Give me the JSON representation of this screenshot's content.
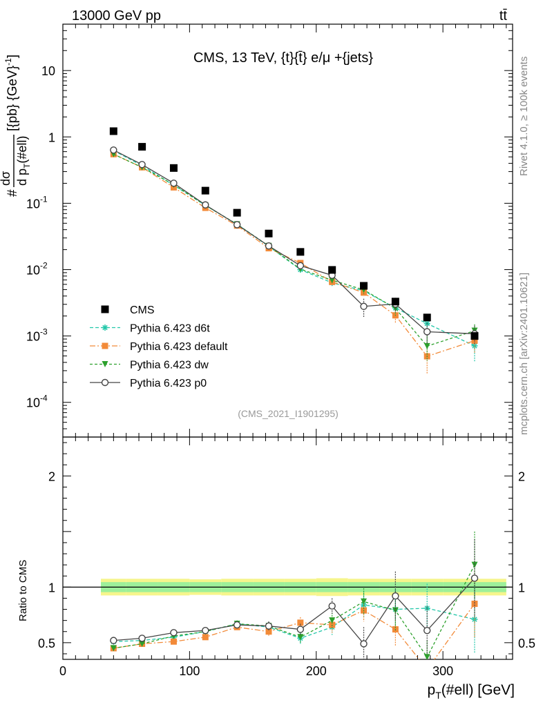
{
  "header": {
    "energy_label": "13000 GeV pp",
    "process_label": "tt̄"
  },
  "side_labels": {
    "rivet": "Rivet 4.1.0, ≥ 100k events",
    "mcplots": "mcplots.cern.ch [arXiv:2401.10621]"
  },
  "chart_data": {
    "type": "line",
    "title": "CMS, 13 TeV, {t}{t̄} e/μ +{jets}",
    "analysis_tag": "(CMS_2021_I1901295)",
    "xlabel": "p_T(#ell) [GeV]",
    "ylabel_main": "#dσ/d p_T(#ell) [{pb} {GeV}^-1]",
    "ylabel_ratio": "Ratio to CMS",
    "xlim": [
      0,
      355
    ],
    "ylim_main": [
      3e-05,
      50
    ],
    "ylim_ratio": [
      0.35,
      2.35
    ],
    "yscale_main": "log",
    "x_ticks": [
      "0",
      "100",
      "200",
      "300"
    ],
    "y_ticks_main": [
      "10^-4",
      "10^-3",
      "10^-2",
      "10^-1",
      "1",
      "10"
    ],
    "y_ticks_ratio": [
      "0.5",
      "1",
      "2"
    ],
    "x": [
      40,
      62.5,
      87.5,
      112.5,
      137.5,
      162.5,
      187.5,
      212.5,
      237.5,
      262.5,
      287.5,
      325
    ],
    "x_bin_edges": [
      30,
      50,
      75,
      100,
      125,
      150,
      175,
      200,
      225,
      250,
      275,
      300,
      350
    ],
    "data": {
      "name": "CMS",
      "values": [
        1.22,
        0.71,
        0.34,
        0.155,
        0.072,
        0.035,
        0.0185,
        0.0099,
        0.0057,
        0.0033,
        0.0019,
        0.001
      ],
      "band_inner": [
        0.045,
        0.045,
        0.045,
        0.045,
        0.045,
        0.045,
        0.045,
        0.045,
        0.045,
        0.045,
        0.045,
        0.045
      ],
      "band_outer": [
        0.075,
        0.075,
        0.075,
        0.07,
        0.075,
        0.075,
        0.075,
        0.08,
        0.075,
        0.075,
        0.075,
        0.075
      ]
    },
    "legend": {
      "position": "bottom-left",
      "entries": [
        "CMS",
        "Pythia 6.423 d6t",
        "Pythia 6.423 default",
        "Pythia 6.423 dw",
        "Pythia 6.423 p0"
      ]
    },
    "series": [
      {
        "name": "Pythia 6.423 d6t",
        "color": "#22c7a9",
        "marker": "star",
        "dash": "5,3",
        "ratio": [
          0.51,
          0.52,
          0.55,
          0.6,
          0.67,
          0.64,
          0.54,
          0.64,
          0.84,
          0.8,
          0.81,
          0.71
        ],
        "ratio_err": [
          0.01,
          0.01,
          0.015,
          0.02,
          0.03,
          0.04,
          0.05,
          0.07,
          0.12,
          0.18,
          0.22,
          0.3
        ]
      },
      {
        "name": "Pythia 6.423 default",
        "color": "#f28a38",
        "marker": "square",
        "dash": "8,3,2,3",
        "ratio": [
          0.45,
          0.49,
          0.51,
          0.55,
          0.64,
          0.6,
          0.68,
          0.66,
          0.79,
          0.62,
          0.26,
          0.85
        ],
        "ratio_err": [
          0.01,
          0.01,
          0.015,
          0.02,
          0.03,
          0.04,
          0.05,
          0.07,
          0.1,
          0.15,
          0.12,
          0.3
        ]
      },
      {
        "name": "Pythia 6.423 dw",
        "color": "#2ca02c",
        "marker": "triangle-down",
        "dash": "4,3",
        "ratio": [
          0.45,
          0.49,
          0.56,
          0.6,
          0.67,
          0.65,
          0.55,
          0.7,
          0.87,
          0.79,
          0.37,
          1.2
        ],
        "ratio_err": [
          0.01,
          0.01,
          0.015,
          0.02,
          0.03,
          0.04,
          0.05,
          0.07,
          0.12,
          0.18,
          0.15,
          0.3
        ]
      },
      {
        "name": "Pythia 6.423 p0",
        "color": "#444444",
        "marker": "circle-open",
        "dash": "",
        "ratio": [
          0.52,
          0.54,
          0.59,
          0.61,
          0.66,
          0.65,
          0.62,
          0.83,
          0.49,
          0.92,
          0.61,
          1.08
        ],
        "ratio_err": [
          0.01,
          0.01,
          0.015,
          0.02,
          0.03,
          0.04,
          0.05,
          0.07,
          0.15,
          0.22,
          0.22,
          0.35
        ]
      }
    ]
  }
}
